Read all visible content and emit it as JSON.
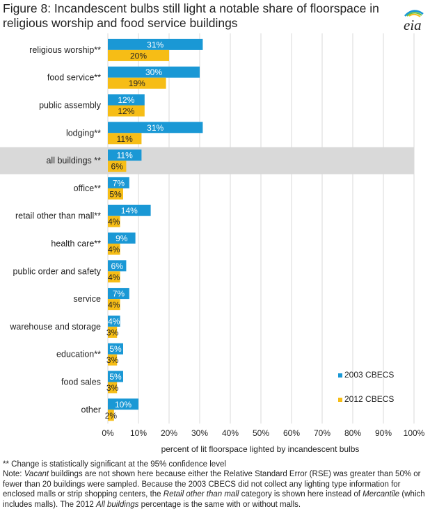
{
  "header": {
    "title": "Figure 8: Incandescent bulbs still light a notable share of floorspace in religious worship and food service buildings",
    "logo_text": "eia"
  },
  "chart_data": {
    "type": "bar",
    "orientation": "horizontal",
    "categories": [
      "religious worship**",
      "food service**",
      "public assembly",
      "lodging**",
      "all buildings **",
      "office**",
      "retail other than mall**",
      "health care**",
      "public order and safety",
      "service",
      "warehouse and storage",
      "education**",
      "food sales",
      "other"
    ],
    "series": [
      {
        "name": "2003 CBECS",
        "color": "#1a98d5",
        "values": [
          31,
          30,
          12,
          31,
          11,
          7,
          14,
          9,
          6,
          7,
          4,
          5,
          5,
          10
        ]
      },
      {
        "name": "2012 CBECS",
        "color": "#f6bd16",
        "values": [
          20,
          19,
          12,
          11,
          6,
          5,
          4,
          4,
          4,
          4,
          3,
          3,
          3,
          2
        ]
      }
    ],
    "highlight_category": "all buildings **",
    "highlight_color": "#d9d9d9",
    "xlabel": "percent of lit floorspace lighted by incandescent bulbs",
    "xlim": [
      0,
      100
    ],
    "xticks": [
      "0%",
      "10%",
      "20%",
      "30%",
      "40%",
      "50%",
      "60%",
      "70%",
      "80%",
      "90%",
      "100%"
    ],
    "value_suffix": "%",
    "grid": true,
    "legend_position": "bottom-right"
  },
  "footnotes": {
    "significance": "** Change is statistically significant at the 95% confidence level",
    "note_parts": [
      {
        "text": "Note: ",
        "italic": false
      },
      {
        "text": "Vacant",
        "italic": true
      },
      {
        "text": " buildings are not shown here because either the Relative Standard Error (RSE) was greater than 50% or fewer than 20 buildings were sampled. Because the 2003 CBECS did not collect any lighting type information for enclosed malls or strip shopping centers, the ",
        "italic": false
      },
      {
        "text": "Retail other than mall",
        "italic": true
      },
      {
        "text": " category is shown here instead of ",
        "italic": false
      },
      {
        "text": "Mercantile",
        "italic": true
      },
      {
        "text": " (which includes malls). The 2012 ",
        "italic": false
      },
      {
        "text": "All buildings",
        "italic": true
      },
      {
        "text": " percentage is the same with or without malls.",
        "italic": false
      }
    ]
  }
}
